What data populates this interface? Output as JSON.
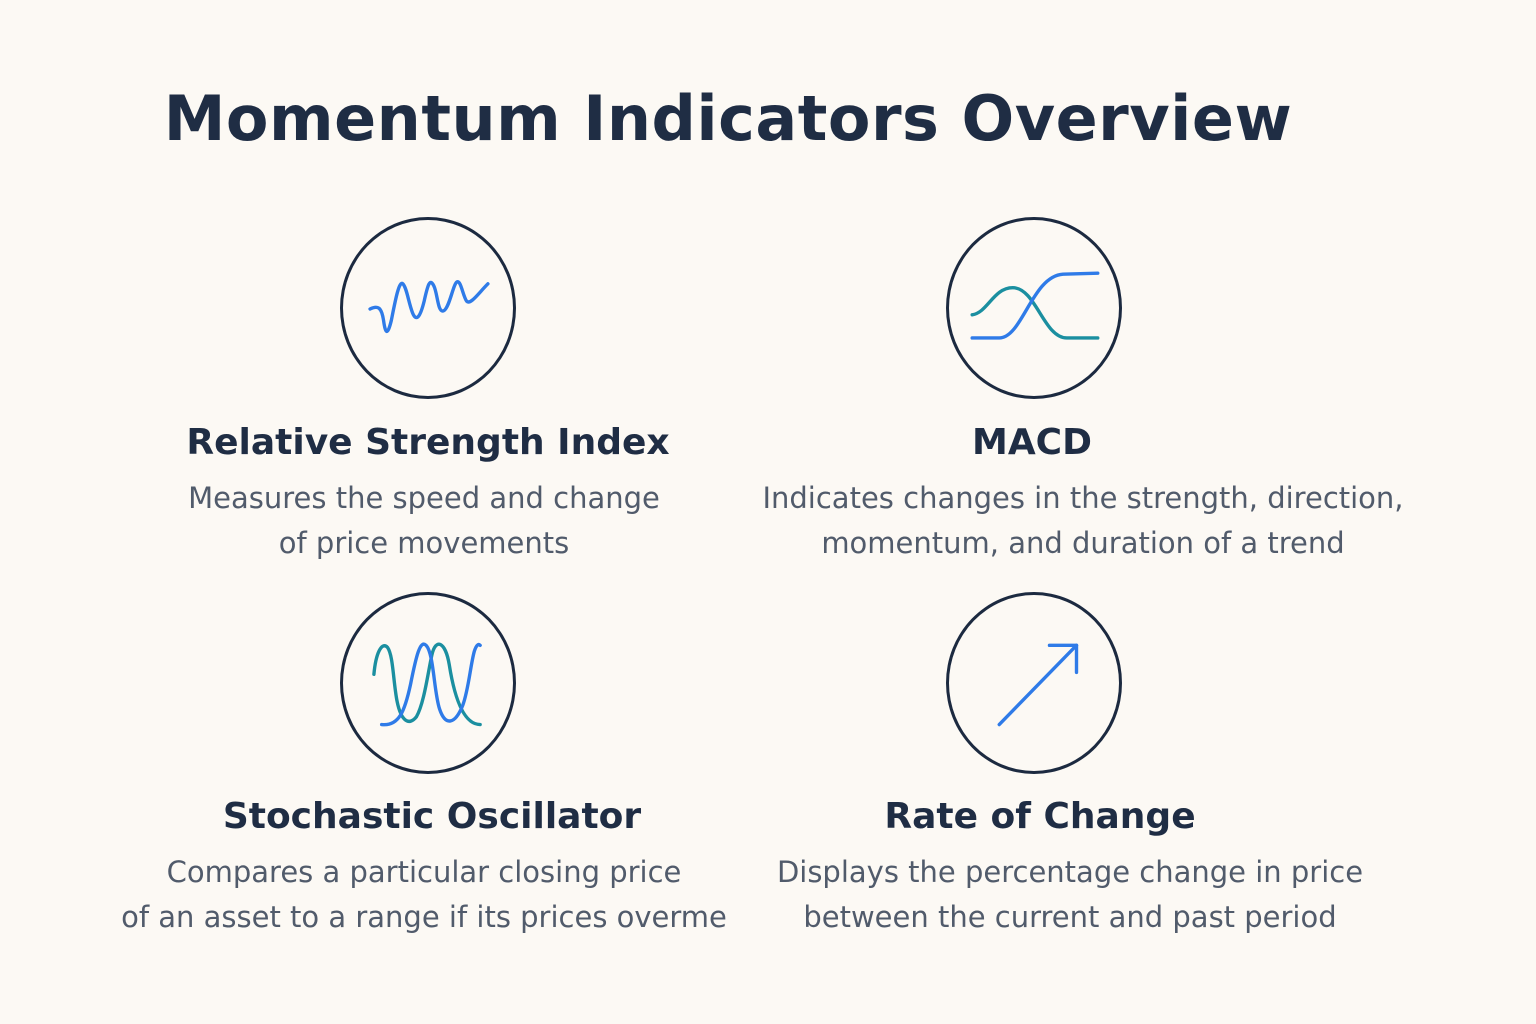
{
  "title": "Momentum Indicators Overview",
  "indicators": [
    {
      "name": "Relative Strength Index",
      "description_lines": [
        "Measures the speed and change",
        "of price movements"
      ],
      "icon": "oscillating-wave-icon"
    },
    {
      "name": "MACD",
      "description_lines": [
        "Indicates changes in the strength, direction,",
        "momentum, and duration of a trend"
      ],
      "icon": "crossing-lines-icon"
    },
    {
      "name": "Stochastic Oscillator",
      "description_lines": [
        "Compares a particular closing price",
        "of an asset to a range if its prices overme"
      ],
      "icon": "double-peak-wave-icon"
    },
    {
      "name": "Rate of Change",
      "description_lines": [
        "Displays the percentage change in price",
        "between the current and past period"
      ],
      "icon": "up-right-arrow-icon"
    }
  ],
  "colors": {
    "background": "#fcf9f4",
    "heading": "#1f2d44",
    "body_text": "#515b6b",
    "circle_stroke": "#1c2a40",
    "blue_line": "#2f7be8",
    "teal_line": "#1b8fa0"
  }
}
